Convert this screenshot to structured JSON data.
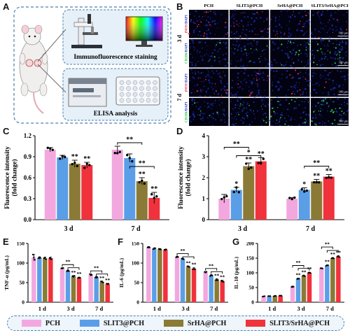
{
  "panels": {
    "a": "A",
    "b": "B",
    "c": "C",
    "d": "D",
    "e": "E",
    "f": "F",
    "g": "G"
  },
  "panel_a": {
    "top_label": "Immunofluorescence staining",
    "bottom_label": "ELISA analysis"
  },
  "panel_b": {
    "columns": [
      "PCH",
      "SLIT3@PCH",
      "SrHA@PCH",
      "SLIT3/SrHA@PCH"
    ],
    "groups": [
      "3 d",
      "7 d"
    ],
    "row_labels": [
      {
        "a": "iNOS",
        "b": "/DAPI"
      },
      {
        "a": "CD206",
        "b": "/DAPI"
      },
      {
        "a": "iNOS",
        "b": "/DAPI"
      },
      {
        "a": "CD206",
        "b": "/DAPI"
      }
    ],
    "scale_bar": "100 μm",
    "colors": {
      "nuclei": "#1a2a9e",
      "inos": "#d62a4a",
      "cd206": "#2ec04a",
      "bg": "#020210"
    }
  },
  "legend": {
    "items": [
      {
        "name": "PCH",
        "color": "#f2a8df"
      },
      {
        "name": "SLIT3@PCH",
        "color": "#5b9ee8"
      },
      {
        "name": "SrHA@PCH",
        "color": "#8a7a36"
      },
      {
        "name": "SLIT3/SrHA@PCH",
        "color": "#f0323c"
      }
    ]
  },
  "chart_data": [
    {
      "id": "C",
      "type": "bar",
      "categories": [
        "3 d",
        "7 d"
      ],
      "ylabel": "Fluorescence intensity\n(fold change)",
      "ylim": [
        0,
        1.2
      ],
      "yticks": [
        0.0,
        0.3,
        0.6,
        0.9,
        1.2
      ],
      "tickfmt": 1,
      "series": [
        {
          "name": "PCH",
          "values": [
            1.0,
            1.0
          ],
          "errors": [
            0.03,
            0.05
          ]
        },
        {
          "name": "SLIT3@PCH",
          "values": [
            0.89,
            0.88
          ],
          "errors": [
            0.03,
            0.06
          ]
        },
        {
          "name": "SrHA@PCH",
          "values": [
            0.8,
            0.55
          ],
          "errors": [
            0.05,
            0.05
          ]
        },
        {
          "name": "SLIT3/SrHA@PCH",
          "values": [
            0.78,
            0.31
          ],
          "errors": [
            0.04,
            0.08
          ]
        }
      ],
      "annotations": [
        {
          "text": "**",
          "cat": 0,
          "series": 2
        },
        {
          "text": "**",
          "cat": 0,
          "series": 3
        },
        {
          "text": "**",
          "cat": 1,
          "series": 2
        },
        {
          "text": "**",
          "cat": 1,
          "series": 3
        }
      ],
      "brackets": [
        {
          "cat": 1,
          "from": 0,
          "to": 2,
          "y": 1.1,
          "text": "**"
        },
        {
          "cat": 1,
          "from": 1,
          "to": 3,
          "y": 0.76,
          "text": "**"
        }
      ]
    },
    {
      "id": "D",
      "type": "bar",
      "categories": [
        "3 d",
        "7 d"
      ],
      "ylabel": "Fluorescence intensity\n(fold change)",
      "ylim": [
        0,
        4
      ],
      "yticks": [
        0,
        1,
        2,
        3,
        4
      ],
      "tickfmt": 0,
      "series": [
        {
          "name": "PCH",
          "values": [
            1.0,
            1.0
          ],
          "errors": [
            0.2,
            0.05
          ]
        },
        {
          "name": "SLIT3@PCH",
          "values": [
            1.42,
            1.42
          ],
          "errors": [
            0.12,
            0.1
          ]
        },
        {
          "name": "SrHA@PCH",
          "values": [
            2.55,
            1.82
          ],
          "errors": [
            0.15,
            0.1
          ]
        },
        {
          "name": "SLIT3/SrHA@PCH",
          "values": [
            2.78,
            2.05
          ],
          "errors": [
            0.18,
            0.1
          ]
        }
      ],
      "annotations": [
        {
          "text": "*",
          "cat": 0,
          "series": 1
        },
        {
          "text": "**",
          "cat": 0,
          "series": 2
        },
        {
          "text": "**",
          "cat": 0,
          "series": 3
        },
        {
          "text": "*",
          "cat": 1,
          "series": 1
        },
        {
          "text": "**",
          "cat": 1,
          "series": 2
        },
        {
          "text": "**",
          "cat": 1,
          "series": 3
        }
      ],
      "brackets": [
        {
          "cat": 0,
          "from": 0,
          "to": 2,
          "y": 3.45,
          "text": "**"
        },
        {
          "cat": 0,
          "from": 1,
          "to": 3,
          "y": 3.05,
          "text": "*"
        },
        {
          "cat": 1,
          "from": 1,
          "to": 3,
          "y": 2.55,
          "text": "**"
        }
      ]
    },
    {
      "id": "E",
      "type": "bar",
      "categories": [
        "1 d",
        "3 d",
        "7 d"
      ],
      "ylabel": "TNF-α (pg/mL)",
      "ylim": [
        0,
        150
      ],
      "yticks": [
        0,
        50,
        100,
        150
      ],
      "tickfmt": 0,
      "series": [
        {
          "name": "PCH",
          "values": [
            114,
            86,
            70
          ],
          "errors": [
            8,
            2,
            2
          ]
        },
        {
          "name": "SLIT3@PCH",
          "values": [
            113,
            80,
            64
          ],
          "errors": [
            3,
            2,
            2
          ]
        },
        {
          "name": "SrHA@PCH",
          "values": [
            112,
            66,
            52
          ],
          "errors": [
            3,
            2,
            2
          ]
        },
        {
          "name": "SLIT3/SrHA@PCH",
          "values": [
            112,
            62,
            46
          ],
          "errors": [
            3,
            2,
            2
          ]
        }
      ],
      "annotations": [
        {
          "text": "**",
          "cat": 1,
          "series": 2
        },
        {
          "text": "**",
          "cat": 1,
          "series": 3
        },
        {
          "text": "**",
          "cat": 2,
          "series": 2
        },
        {
          "text": "**",
          "cat": 2,
          "series": 3
        }
      ],
      "brackets": [
        {
          "cat": 1,
          "from": 0,
          "to": 2,
          "y": 96,
          "text": "**"
        },
        {
          "cat": 1,
          "from": 1,
          "to": 3,
          "y": 88,
          "text": ""
        },
        {
          "cat": 2,
          "from": 0,
          "to": 2,
          "y": 80,
          "text": "**"
        },
        {
          "cat": 2,
          "from": 1,
          "to": 3,
          "y": 72,
          "text": ""
        }
      ]
    },
    {
      "id": "F",
      "type": "bar",
      "categories": [
        "1 d",
        "3 d",
        "7 d"
      ],
      "ylabel": "IL-6 (pg/mL)",
      "ylim": [
        0,
        150
      ],
      "yticks": [
        0,
        50,
        100,
        150
      ],
      "tickfmt": 0,
      "series": [
        {
          "name": "PCH",
          "values": [
            140,
            115,
            76
          ],
          "errors": [
            2,
            2,
            2
          ]
        },
        {
          "name": "SLIT3@PCH",
          "values": [
            137,
            110,
            68
          ],
          "errors": [
            2,
            2,
            2
          ]
        },
        {
          "name": "SrHA@PCH",
          "values": [
            135,
            90,
            58
          ],
          "errors": [
            2,
            2,
            2
          ]
        },
        {
          "name": "SLIT3/SrHA@PCH",
          "values": [
            133,
            86,
            54
          ],
          "errors": [
            2,
            2,
            2
          ]
        }
      ],
      "annotations": [
        {
          "text": "**",
          "cat": 1,
          "series": 2
        },
        {
          "text": "**",
          "cat": 1,
          "series": 3
        },
        {
          "text": "**",
          "cat": 2,
          "series": 2
        },
        {
          "text": "**",
          "cat": 2,
          "series": 3
        }
      ],
      "brackets": [
        {
          "cat": 1,
          "from": 0,
          "to": 2,
          "y": 124,
          "text": "**"
        },
        {
          "cat": 1,
          "from": 1,
          "to": 3,
          "y": 116,
          "text": ""
        },
        {
          "cat": 2,
          "from": 0,
          "to": 2,
          "y": 86,
          "text": "**"
        },
        {
          "cat": 2,
          "from": 1,
          "to": 3,
          "y": 78,
          "text": ""
        }
      ]
    },
    {
      "id": "G",
      "type": "bar",
      "categories": [
        "1 d",
        "3 d",
        "7 d"
      ],
      "ylabel": "IL-10 (pg/mL)",
      "ylim": [
        0,
        200
      ],
      "yticks": [
        0,
        50,
        100,
        150,
        200
      ],
      "tickfmt": 0,
      "series": [
        {
          "name": "PCH",
          "values": [
            20,
            53,
            115
          ],
          "errors": [
            1,
            2,
            2
          ]
        },
        {
          "name": "SLIT3@PCH",
          "values": [
            20,
            80,
            125
          ],
          "errors": [
            1,
            2,
            2
          ]
        },
        {
          "name": "SrHA@PCH",
          "values": [
            21,
            90,
            150
          ],
          "errors": [
            1,
            2,
            2
          ]
        },
        {
          "name": "SLIT3/SrHA@PCH",
          "values": [
            22,
            100,
            155
          ],
          "errors": [
            1,
            2,
            3
          ]
        }
      ],
      "annotations": [
        {
          "text": "**",
          "cat": 1,
          "series": 1
        },
        {
          "text": "**",
          "cat": 1,
          "series": 2
        },
        {
          "text": "**",
          "cat": 1,
          "series": 3
        },
        {
          "text": "**",
          "cat": 2,
          "series": 1
        },
        {
          "text": "**",
          "cat": 2,
          "series": 2
        },
        {
          "text": "**",
          "cat": 2,
          "series": 3
        }
      ],
      "brackets": [
        {
          "cat": 1,
          "from": 0,
          "to": 2,
          "y": 125,
          "text": "**"
        },
        {
          "cat": 1,
          "from": 1,
          "to": 3,
          "y": 115,
          "text": ""
        },
        {
          "cat": 2,
          "from": 0,
          "to": 2,
          "y": 188,
          "text": "**"
        },
        {
          "cat": 2,
          "from": 1,
          "to": 3,
          "y": 176,
          "text": ""
        }
      ]
    }
  ]
}
